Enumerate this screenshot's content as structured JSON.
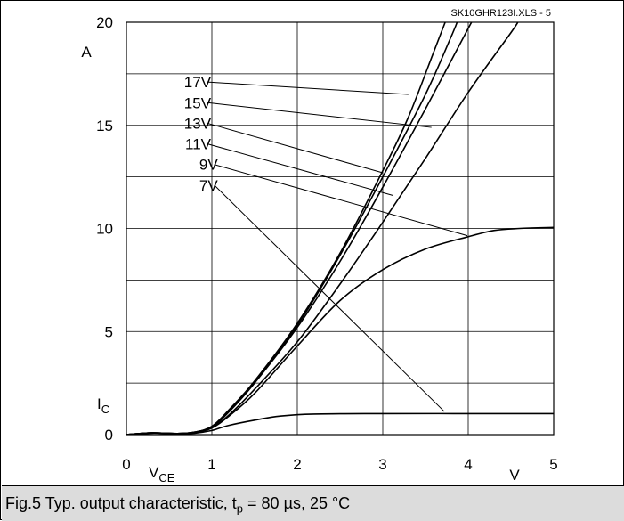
{
  "caption": {
    "prefix": "Fig.5 Typ. output characteristic, t",
    "sub": "p",
    "suffix": " = 80 µs, 25 °C"
  },
  "chart_data": {
    "type": "line",
    "file_id": "SK10GHR123I.XLS - 5",
    "xlabel_main": "V",
    "xlabel_sub": "CE",
    "x_unit": "V",
    "ylabel_main": "I",
    "ylabel_sub": "C",
    "y_unit": "A",
    "xlim": [
      0,
      5
    ],
    "ylim": [
      0,
      20
    ],
    "x_ticks": [
      "0",
      "1",
      "2",
      "3",
      "4",
      "5"
    ],
    "y_ticks": [
      "0",
      "5",
      "10",
      "15",
      "20"
    ],
    "grid": true,
    "series": [
      {
        "name": "17V",
        "points": [
          [
            0,
            0
          ],
          [
            0.3,
            0.08
          ],
          [
            0.6,
            0.05
          ],
          [
            0.8,
            0.12
          ],
          [
            1.0,
            0.4
          ],
          [
            1.2,
            1.2
          ],
          [
            1.5,
            2.6
          ],
          [
            2.0,
            5.4
          ],
          [
            2.5,
            8.8
          ],
          [
            3.0,
            12.8
          ],
          [
            3.3,
            15.4
          ],
          [
            3.6,
            18.6
          ],
          [
            3.73,
            20
          ]
        ]
      },
      {
        "name": "15V",
        "points": [
          [
            0,
            0
          ],
          [
            0.3,
            0.08
          ],
          [
            0.6,
            0.05
          ],
          [
            0.8,
            0.12
          ],
          [
            1.0,
            0.38
          ],
          [
            1.2,
            1.15
          ],
          [
            1.5,
            2.55
          ],
          [
            2.0,
            5.3
          ],
          [
            2.5,
            8.7
          ],
          [
            3.0,
            12.5
          ],
          [
            3.5,
            16.5
          ],
          [
            3.8,
            19.3
          ],
          [
            3.87,
            20
          ]
        ]
      },
      {
        "name": "13V",
        "points": [
          [
            0,
            0
          ],
          [
            0.3,
            0.08
          ],
          [
            0.6,
            0.05
          ],
          [
            0.8,
            0.12
          ],
          [
            1.0,
            0.37
          ],
          [
            1.2,
            1.1
          ],
          [
            1.5,
            2.5
          ],
          [
            2.0,
            5.2
          ],
          [
            2.5,
            8.4
          ],
          [
            3.0,
            12.0
          ],
          [
            3.5,
            15.8
          ],
          [
            4.0,
            19.7
          ],
          [
            4.04,
            20
          ]
        ]
      },
      {
        "name": "11V",
        "points": [
          [
            0,
            0
          ],
          [
            0.3,
            0.08
          ],
          [
            0.6,
            0.05
          ],
          [
            0.8,
            0.1
          ],
          [
            1.0,
            0.33
          ],
          [
            1.2,
            0.95
          ],
          [
            1.5,
            2.2
          ],
          [
            2.0,
            4.5
          ],
          [
            2.5,
            7.3
          ],
          [
            3.0,
            10.3
          ],
          [
            3.5,
            13.4
          ],
          [
            4.0,
            16.6
          ],
          [
            4.5,
            19.5
          ],
          [
            4.58,
            20
          ]
        ]
      },
      {
        "name": "9V",
        "points": [
          [
            0,
            0
          ],
          [
            0.3,
            0.08
          ],
          [
            0.6,
            0.05
          ],
          [
            0.8,
            0.1
          ],
          [
            1.0,
            0.32
          ],
          [
            1.2,
            0.9
          ],
          [
            1.5,
            2.0
          ],
          [
            2.0,
            4.3
          ],
          [
            2.5,
            6.5
          ],
          [
            3.0,
            8.0
          ],
          [
            3.5,
            9.0
          ],
          [
            4.0,
            9.6
          ],
          [
            4.3,
            9.9
          ],
          [
            4.6,
            10.0
          ],
          [
            5.0,
            10.05
          ]
        ]
      },
      {
        "name": "7V",
        "points": [
          [
            0,
            0
          ],
          [
            0.3,
            0.07
          ],
          [
            0.6,
            0.04
          ],
          [
            0.8,
            0.07
          ],
          [
            1.0,
            0.2
          ],
          [
            1.2,
            0.45
          ],
          [
            1.5,
            0.7
          ],
          [
            1.8,
            0.9
          ],
          [
            2.2,
            1.0
          ],
          [
            3.0,
            1.02
          ],
          [
            4.0,
            1.02
          ],
          [
            5.0,
            1.02
          ]
        ]
      }
    ],
    "annotations": [
      {
        "text": "17V",
        "label_at": [
          0.99,
          17.1
        ],
        "line_to": [
          3.3,
          16.5
        ]
      },
      {
        "text": "15V",
        "label_at": [
          0.99,
          16.1
        ],
        "line_to": [
          3.57,
          14.9
        ]
      },
      {
        "text": "13V",
        "label_at": [
          0.99,
          15.1
        ],
        "line_to": [
          3.0,
          12.7
        ]
      },
      {
        "text": "11V",
        "label_at": [
          0.99,
          14.1
        ],
        "line_to": [
          3.12,
          11.6
        ]
      },
      {
        "text": "9V",
        "label_at": [
          1.07,
          13.1
        ],
        "line_to": [
          3.99,
          9.65
        ]
      },
      {
        "text": "7V",
        "label_at": [
          1.07,
          12.1
        ],
        "line_to": [
          3.72,
          1.12
        ]
      }
    ]
  }
}
